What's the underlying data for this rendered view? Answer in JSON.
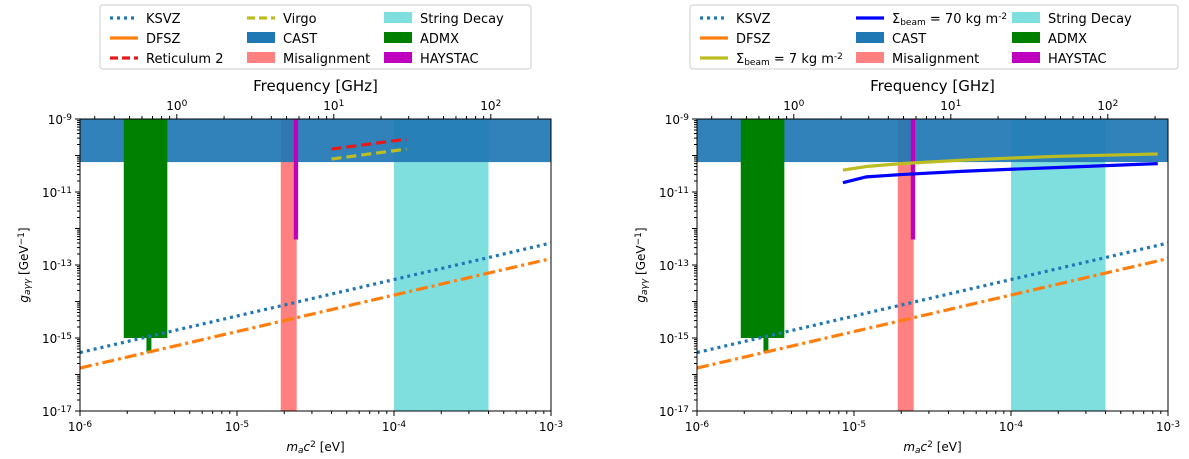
{
  "colors": {
    "KSVZ": "#1f77b4",
    "DFSZ": "#ff7f0e",
    "Reticulum 2": "#e41a1c",
    "Virgo": "#bcbd22",
    "String Decay": "#7fdfdf",
    "CAST": "#1f77b4",
    "Misalignment": "#ff8080",
    "ADMX": "#008000",
    "HAYSTAC": "#bf00bf",
    "beam7": "#bcbd22",
    "beam70": "#0000ff"
  },
  "chart_data": [
    {
      "type": "line",
      "xscale": "log",
      "yscale": "log",
      "xlim": [
        1e-06,
        0.001
      ],
      "ylim": [
        1e-17,
        1e-09
      ],
      "xlabel": "m_a c^2 [eV]",
      "ylabel": "g_aγγ [GeV^-1]",
      "top_axis_label": "Frequency [GHz]",
      "x_tick_labels": [
        "10^-6",
        "10^-5",
        "10^-4",
        "10^-3"
      ],
      "y_tick_labels": [
        "10^-17",
        "10^-15",
        "10^-13",
        "10^-11",
        "10^-9"
      ],
      "top_tick_labels": [
        "10^0",
        "10^1",
        "10^2"
      ],
      "legend_position": "top",
      "legend": [
        {
          "label": "KSVZ",
          "kind": "dotted",
          "color_key": "KSVZ"
        },
        {
          "label": "DFSZ",
          "kind": "solid",
          "color_key": "DFSZ"
        },
        {
          "label": "Reticulum 2",
          "kind": "dashed",
          "color_key": "Reticulum 2"
        },
        {
          "label": "Virgo",
          "kind": "dashed",
          "color_key": "Virgo"
        },
        {
          "label": "CAST",
          "kind": "patch",
          "color_key": "CAST"
        },
        {
          "label": "Misalignment",
          "kind": "patch",
          "color_key": "Misalignment"
        },
        {
          "label": "String Decay",
          "kind": "patch",
          "color_key": "String Decay"
        },
        {
          "label": "ADMX",
          "kind": "patch",
          "color_key": "ADMX"
        },
        {
          "label": "HAYSTAC",
          "kind": "patch",
          "color_key": "HAYSTAC"
        }
      ],
      "regions": [
        {
          "name": "String Decay",
          "x": [
            0.0001,
            0.0004
          ],
          "y": [
            1e-17,
            1e-09
          ]
        },
        {
          "name": "Misalignment",
          "x": [
            1.9e-05,
            2.4e-05
          ],
          "y": [
            1e-17,
            1e-09
          ]
        },
        {
          "name": "CAST",
          "x": [
            1e-06,
            0.001
          ],
          "y": [
            6.6e-11,
            1e-09
          ]
        },
        {
          "name": "ADMX",
          "x": [
            1.9e-06,
            3.6e-06
          ],
          "y": [
            1e-15,
            1e-09
          ]
        },
        {
          "name": "ADMX",
          "x": [
            2.65e-06,
            2.85e-06
          ],
          "y": [
            4e-16,
            1e-15
          ]
        },
        {
          "name": "HAYSTAC",
          "x": [
            2.3e-05,
            2.45e-05
          ],
          "y": [
            5e-13,
            1e-09
          ]
        }
      ],
      "series": [
        {
          "name": "KSVZ",
          "style": "dotted",
          "x": [
            1e-06,
            0.001
          ],
          "y": [
            4e-16,
            4e-13
          ]
        },
        {
          "name": "DFSZ",
          "style": "dashdot",
          "x": [
            1e-06,
            0.001
          ],
          "y": [
            1.5e-16,
            1.5e-13
          ]
        },
        {
          "name": "Reticulum 2",
          "style": "dashed",
          "x": [
            4e-05,
            0.00012
          ],
          "y": [
            1.5e-10,
            2.8e-10
          ]
        },
        {
          "name": "Virgo",
          "style": "dashed",
          "x": [
            4e-05,
            0.00012
          ],
          "y": [
            8e-11,
            1.5e-10
          ]
        }
      ]
    },
    {
      "type": "line",
      "xscale": "log",
      "yscale": "log",
      "xlim": [
        1e-06,
        0.001
      ],
      "ylim": [
        1e-17,
        1e-09
      ],
      "xlabel": "m_a c^2 [eV]",
      "ylabel": "g_aγγ [GeV^-1]",
      "top_axis_label": "Frequency [GHz]",
      "x_tick_labels": [
        "10^-6",
        "10^-5",
        "10^-4",
        "10^-3"
      ],
      "y_tick_labels": [
        "10^-17",
        "10^-15",
        "10^-13",
        "10^-11",
        "10^-9"
      ],
      "top_tick_labels": [
        "10^0",
        "10^1",
        "10^2"
      ],
      "legend_position": "top",
      "legend": [
        {
          "label": "KSVZ",
          "kind": "dotted",
          "color_key": "KSVZ"
        },
        {
          "label": "DFSZ",
          "kind": "solid",
          "color_key": "DFSZ"
        },
        {
          "label": "Σ_beam = 7 kg m^-2",
          "kind": "solid",
          "color_key": "beam7"
        },
        {
          "label": "Σ_beam = 70 kg m^-2",
          "kind": "solid",
          "color_key": "beam70"
        },
        {
          "label": "CAST",
          "kind": "patch",
          "color_key": "CAST"
        },
        {
          "label": "Misalignment",
          "kind": "patch",
          "color_key": "Misalignment"
        },
        {
          "label": "String Decay",
          "kind": "patch",
          "color_key": "String Decay"
        },
        {
          "label": "ADMX",
          "kind": "patch",
          "color_key": "ADMX"
        },
        {
          "label": "HAYSTAC",
          "kind": "patch",
          "color_key": "HAYSTAC"
        }
      ],
      "regions": [
        {
          "name": "String Decay",
          "x": [
            0.0001,
            0.0004
          ],
          "y": [
            1e-17,
            1e-09
          ]
        },
        {
          "name": "Misalignment",
          "x": [
            1.9e-05,
            2.4e-05
          ],
          "y": [
            1e-17,
            1e-09
          ]
        },
        {
          "name": "CAST",
          "x": [
            1e-06,
            0.001
          ],
          "y": [
            6.6e-11,
            1e-09
          ]
        },
        {
          "name": "ADMX",
          "x": [
            1.9e-06,
            3.6e-06
          ],
          "y": [
            1e-15,
            1e-09
          ]
        },
        {
          "name": "ADMX",
          "x": [
            2.65e-06,
            2.85e-06
          ],
          "y": [
            4e-16,
            1e-15
          ]
        },
        {
          "name": "HAYSTAC",
          "x": [
            2.3e-05,
            2.45e-05
          ],
          "y": [
            5e-13,
            1e-09
          ]
        }
      ],
      "series": [
        {
          "name": "KSVZ",
          "style": "dotted",
          "x": [
            1e-06,
            0.001
          ],
          "y": [
            4e-16,
            4e-13
          ]
        },
        {
          "name": "DFSZ",
          "style": "dashdot",
          "x": [
            1e-06,
            0.001
          ],
          "y": [
            1.5e-16,
            1.5e-13
          ]
        },
        {
          "name": "Σ_beam = 7 kg m^-2",
          "style": "solid",
          "color_key": "beam7",
          "x": [
            8.5e-06,
            1.2e-05,
            2e-05,
            5e-05,
            0.0001,
            0.0002,
            0.00086
          ],
          "y": [
            4e-11,
            5e-11,
            6e-11,
            7.5e-11,
            8.5e-11,
            9.5e-11,
            1.1e-10
          ]
        },
        {
          "name": "Σ_beam = 70 kg m^-2",
          "style": "solid",
          "color_key": "beam70",
          "x": [
            8.5e-06,
            1.2e-05,
            2e-05,
            5e-05,
            0.0001,
            0.0002,
            0.00086
          ],
          "y": [
            1.8e-11,
            2.6e-11,
            3e-11,
            3.7e-11,
            4.2e-11,
            4.7e-11,
            6e-11
          ]
        }
      ]
    }
  ]
}
